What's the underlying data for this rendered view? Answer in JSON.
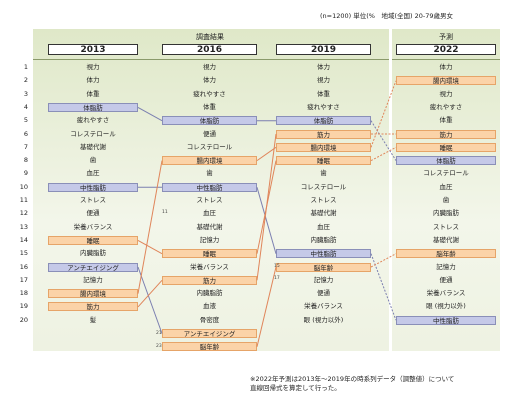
{
  "meta": {
    "note": "(n=1200) 単位(%　地域(全国) 20-79歳男女"
  },
  "headers": {
    "survey": "調査結果",
    "prediction": "予測"
  },
  "years": [
    "2013",
    "2016",
    "2019",
    "2022"
  ],
  "ranks": [
    "1",
    "2",
    "3",
    "4",
    "5",
    "6",
    "7",
    "8",
    "9",
    "10",
    "11",
    "12",
    "13",
    "14",
    "15",
    "16",
    "17",
    "18",
    "19",
    "20"
  ],
  "columns": [
    {
      "year": "2013",
      "items": [
        {
          "label": "視力",
          "hl": ""
        },
        {
          "label": "体力",
          "hl": ""
        },
        {
          "label": "体重",
          "hl": ""
        },
        {
          "label": "体脂肪",
          "hl": "blue"
        },
        {
          "label": "疲れやすさ",
          "hl": ""
        },
        {
          "label": "コレステロール",
          "hl": ""
        },
        {
          "label": "基礎代謝",
          "hl": ""
        },
        {
          "label": "歯",
          "hl": ""
        },
        {
          "label": "血圧",
          "hl": ""
        },
        {
          "label": "中性脂肪",
          "hl": "blue"
        },
        {
          "label": "ストレス",
          "hl": ""
        },
        {
          "label": "便通",
          "hl": ""
        },
        {
          "label": "栄養バランス",
          "hl": ""
        },
        {
          "label": "睡眠",
          "hl": "orange"
        },
        {
          "label": "内臓脂肪",
          "hl": ""
        },
        {
          "label": "アンチエイジング",
          "hl": "blue"
        },
        {
          "label": "記憶力",
          "hl": ""
        },
        {
          "label": "腸内環境",
          "hl": "orange"
        },
        {
          "label": "筋力",
          "hl": "orange"
        },
        {
          "label": "髪",
          "hl": ""
        }
      ]
    },
    {
      "year": "2016",
      "items": [
        {
          "label": "視力",
          "hl": ""
        },
        {
          "label": "体力",
          "hl": ""
        },
        {
          "label": "疲れやすさ",
          "hl": ""
        },
        {
          "label": "体重",
          "hl": ""
        },
        {
          "label": "体脂肪",
          "hl": "blue"
        },
        {
          "label": "便通",
          "hl": ""
        },
        {
          "label": "コレステロール",
          "hl": ""
        },
        {
          "label": "腸内環境",
          "hl": "orange"
        },
        {
          "label": "歯",
          "hl": ""
        },
        {
          "label": "中性脂肪",
          "hl": "blue"
        },
        {
          "label": "ストレス",
          "hl": ""
        },
        {
          "label": "血圧",
          "hl": ""
        },
        {
          "label": "基礎代謝",
          "hl": ""
        },
        {
          "label": "記憶力",
          "hl": ""
        },
        {
          "label": "睡眠",
          "hl": "orange"
        },
        {
          "label": "栄養バランス",
          "hl": ""
        },
        {
          "label": "筋力",
          "hl": "orange"
        },
        {
          "label": "内臓脂肪",
          "hl": ""
        },
        {
          "label": "血液",
          "hl": ""
        },
        {
          "label": "骨密度",
          "hl": ""
        }
      ]
    },
    {
      "year": "2019",
      "items": [
        {
          "label": "体力",
          "hl": ""
        },
        {
          "label": "視力",
          "hl": ""
        },
        {
          "label": "体重",
          "hl": ""
        },
        {
          "label": "疲れやすさ",
          "hl": ""
        },
        {
          "label": "体脂肪",
          "hl": "blue"
        },
        {
          "label": "筋力",
          "hl": "orange"
        },
        {
          "label": "腸内環境",
          "hl": "orange"
        },
        {
          "label": "睡眠",
          "hl": "orange"
        },
        {
          "label": "歯",
          "hl": ""
        },
        {
          "label": "コレステロール",
          "hl": ""
        },
        {
          "label": "ストレス",
          "hl": ""
        },
        {
          "label": "基礎代謝",
          "hl": ""
        },
        {
          "label": "血圧",
          "hl": ""
        },
        {
          "label": "内臓脂肪",
          "hl": ""
        },
        {
          "label": "中性脂肪",
          "hl": "blue"
        },
        {
          "label": "脳年齢",
          "hl": "orange"
        },
        {
          "label": "記憶力",
          "hl": ""
        },
        {
          "label": "便通",
          "hl": ""
        },
        {
          "label": "栄養バランス",
          "hl": ""
        },
        {
          "label": "眼 (視力以外)",
          "hl": ""
        }
      ]
    },
    {
      "year": "2022",
      "items": [
        {
          "label": "体力",
          "hl": ""
        },
        {
          "label": "腸内環境",
          "hl": "orange"
        },
        {
          "label": "視力",
          "hl": ""
        },
        {
          "label": "疲れやすさ",
          "hl": ""
        },
        {
          "label": "体重",
          "hl": ""
        },
        {
          "label": "筋力",
          "hl": "orange"
        },
        {
          "label": "睡眠",
          "hl": "orange"
        },
        {
          "label": "体脂肪",
          "hl": "blue"
        },
        {
          "label": "コレステロール",
          "hl": ""
        },
        {
          "label": "血圧",
          "hl": ""
        },
        {
          "label": "歯",
          "hl": ""
        },
        {
          "label": "内臓脂肪",
          "hl": ""
        },
        {
          "label": "ストレス",
          "hl": ""
        },
        {
          "label": "基礎代謝",
          "hl": ""
        },
        {
          "label": "脳年齢",
          "hl": "orange"
        },
        {
          "label": "記憶力",
          "hl": ""
        },
        {
          "label": "便通",
          "hl": ""
        },
        {
          "label": "栄養バランス",
          "hl": ""
        },
        {
          "label": "眼 (視力以外)",
          "hl": ""
        },
        {
          "label": "中性脂肪",
          "hl": "blue"
        }
      ]
    }
  ],
  "extras_2016": [
    {
      "rank": "21",
      "label": "アンチエイジング",
      "hl": "orange"
    },
    {
      "rank": "23",
      "label": "脳年齢",
      "hl": "orange"
    }
  ],
  "small_ranks": {
    "r2016_11": "11",
    "r2019_15": "15",
    "r2019_17": "17"
  },
  "links": [
    {
      "item": "体脂肪",
      "color": "#7b7fb0",
      "from": [
        0,
        3
      ],
      "to": [
        1,
        4
      ]
    },
    {
      "item": "中性脂肪",
      "color": "#7b7fb0",
      "from": [
        0,
        9
      ],
      "to": [
        1,
        9
      ]
    },
    {
      "item": "アンチエイジング",
      "color": "#7b7fb0",
      "from": [
        0,
        15
      ],
      "to": [
        1,
        20
      ]
    },
    {
      "item": "睡眠",
      "color": "#e0855a",
      "from": [
        0,
        13
      ],
      "to": [
        1,
        14
      ]
    },
    {
      "item": "腸内環境",
      "color": "#e0855a",
      "from": [
        0,
        17
      ],
      "to": [
        1,
        7
      ]
    },
    {
      "item": "筋力",
      "color": "#e0855a",
      "from": [
        0,
        18
      ],
      "to": [
        1,
        16
      ]
    },
    {
      "item": "体脂肪",
      "color": "#7b7fb0",
      "from": [
        1,
        4
      ],
      "to": [
        2,
        4
      ]
    },
    {
      "item": "中性脂肪",
      "color": "#7b7fb0",
      "from": [
        1,
        9
      ],
      "to": [
        2,
        14
      ]
    },
    {
      "item": "腸内環境",
      "color": "#e0855a",
      "from": [
        1,
        7
      ],
      "to": [
        2,
        6
      ]
    },
    {
      "item": "睡眠",
      "color": "#e0855a",
      "from": [
        1,
        14
      ],
      "to": [
        2,
        7
      ]
    },
    {
      "item": "筋力",
      "color": "#e0855a",
      "from": [
        1,
        16
      ],
      "to": [
        2,
        5
      ]
    },
    {
      "item": "脳年齢",
      "color": "#e0855a",
      "from": [
        1,
        21
      ],
      "to": [
        2,
        15
      ]
    },
    {
      "item": "体脂肪",
      "color": "#7b7fb0",
      "dash": true,
      "from": [
        2,
        4
      ],
      "to": [
        3,
        7
      ]
    },
    {
      "item": "中性脂肪",
      "color": "#7b7fb0",
      "dash": true,
      "from": [
        2,
        14
      ],
      "to": [
        3,
        19
      ]
    },
    {
      "item": "筋力",
      "color": "#e0855a",
      "dash": true,
      "from": [
        2,
        5
      ],
      "to": [
        3,
        5
      ]
    },
    {
      "item": "腸内環境",
      "color": "#e0855a",
      "dash": true,
      "from": [
        2,
        6
      ],
      "to": [
        3,
        1
      ]
    },
    {
      "item": "睡眠",
      "color": "#e0855a",
      "dash": true,
      "from": [
        2,
        7
      ],
      "to": [
        3,
        6
      ]
    },
    {
      "item": "脳年齢",
      "color": "#e0855a",
      "dash": true,
      "from": [
        2,
        15
      ],
      "to": [
        3,
        14
      ]
    }
  ],
  "footnote": {
    "line1": "※2022年予測は2013年～2019年の時系列データ（調整値）について",
    "line2": "直線回帰式を算定して行った。"
  },
  "colors": {
    "blue_highlight": "#c5c9e8",
    "orange_highlight": "#fbd3a8",
    "blue_line": "#7b7fb0",
    "orange_line": "#e0855a",
    "background": "#e6edd5"
  },
  "chart_data": {
    "type": "table",
    "title": "",
    "columns": [
      "2013",
      "2016",
      "2019",
      "2022"
    ],
    "note": "(n=1200) 単位(%　地域(全国) 20-79歳男女"
  }
}
